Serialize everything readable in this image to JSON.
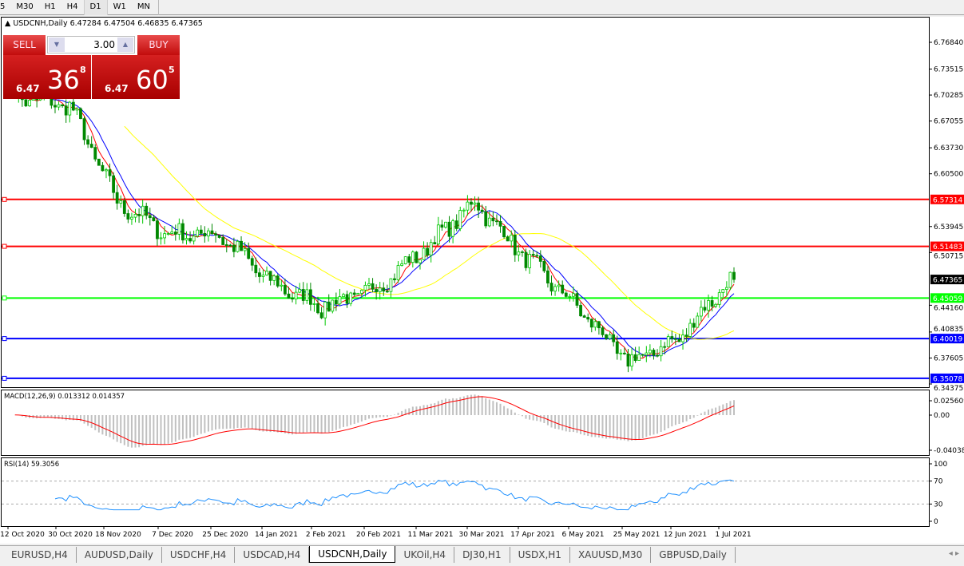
{
  "toolbar": {
    "timeframes": [
      "5",
      "M30",
      "H1",
      "H4",
      "D1",
      "W1",
      "MN"
    ],
    "selected": "D1"
  },
  "chart": {
    "symbol_line": "USDCNH,Daily  6.47284 6.47504 6.46835 6.47365",
    "trade_panel": {
      "sell_label": "SELL",
      "buy_label": "BUY",
      "lot": "3.00",
      "sell_prefix": "6.47",
      "sell_big": "36",
      "sell_sup": "8",
      "buy_prefix": "6.47",
      "buy_big": "60",
      "buy_sup": "5"
    },
    "price_axis": [
      "6.76840",
      "6.73515",
      "6.70285",
      "6.67055",
      "6.63730",
      "6.60500",
      "6.53945",
      "6.50715",
      "6.44160",
      "6.40835",
      "6.37605",
      "6.34375"
    ],
    "current_price": "6.47365",
    "levels": [
      {
        "price": "6.57314",
        "color": "#ff0000"
      },
      {
        "price": "6.51483",
        "color": "#ff0000"
      },
      {
        "price": "6.45059",
        "color": "#00ff00"
      },
      {
        "price": "6.40019",
        "color": "#0000ff"
      },
      {
        "price": "6.35078",
        "color": "#0000ff"
      }
    ],
    "colors": {
      "bull": "#00c800",
      "bear": "#008800",
      "ma_fast": "#ff0000",
      "ma_mid": "#0000ff",
      "ma_slow": "#ffff00",
      "macd_hist": "#c0c0c0",
      "macd_signal": "#ff0000",
      "rsi": "#1e90ff"
    },
    "macd": {
      "label": "MACD(12,26,9) 0.013312 0.014357",
      "axis": [
        "0.025609",
        "0.00",
        "-0.040386"
      ]
    },
    "rsi": {
      "label": "RSI(14) 59.3056",
      "axis": [
        "100",
        "70",
        "30",
        "0"
      ]
    },
    "date_axis": [
      "12 Oct 2020",
      "30 Oct 2020",
      "18 Nov 2020",
      "7 Dec 2020",
      "25 Dec 2020",
      "14 Jan 2021",
      "2 Feb 2021",
      "20 Feb 2021",
      "11 Mar 2021",
      "30 Mar 2021",
      "17 Apr 2021",
      "6 May 2021",
      "25 May 2021",
      "12 Jun 2021",
      "1 Jul 2021"
    ]
  },
  "chart_data": {
    "type": "candlestick",
    "symbol": "USDCNH",
    "timeframe": "Daily",
    "approx_close_at_dates": [
      {
        "date": "start",
        "close": 6.72
      },
      {
        "date": "12 Oct 2020",
        "close": 6.7
      },
      {
        "date": "30 Oct 2020",
        "close": 6.69
      },
      {
        "date": "18 Nov 2020",
        "close": 6.57
      },
      {
        "date": "7 Dec 2020",
        "close": 6.53
      },
      {
        "date": "25 Dec 2020",
        "close": 6.53
      },
      {
        "date": "14 Jan 2021",
        "close": 6.47
      },
      {
        "date": "2 Feb 2021",
        "close": 6.44
      },
      {
        "date": "20 Feb 2021",
        "close": 6.46
      },
      {
        "date": "11 Mar 2021",
        "close": 6.51
      },
      {
        "date": "30 Mar 2021",
        "close": 6.57
      },
      {
        "date": "17 Apr 2021",
        "close": 6.5
      },
      {
        "date": "6 May 2021",
        "close": 6.44
      },
      {
        "date": "25 May 2021",
        "close": 6.37
      },
      {
        "date": "12 Jun 2021",
        "close": 6.4
      },
      {
        "date": "1 Jul 2021",
        "close": 6.47
      },
      {
        "date": "last",
        "close": 6.47365
      }
    ],
    "ylim": [
      6.34375,
      6.7684
    ]
  },
  "tabs": [
    "EURUSD,H4",
    "AUDUSD,Daily",
    "USDCHF,H4",
    "USDCAD,H4",
    "USDCNH,Daily",
    "UKOil,H4",
    "DJ30,H1",
    "USDX,H1",
    "XAUUSD,M30",
    "GBPUSD,Daily"
  ],
  "active_tab": "USDCNH,Daily"
}
